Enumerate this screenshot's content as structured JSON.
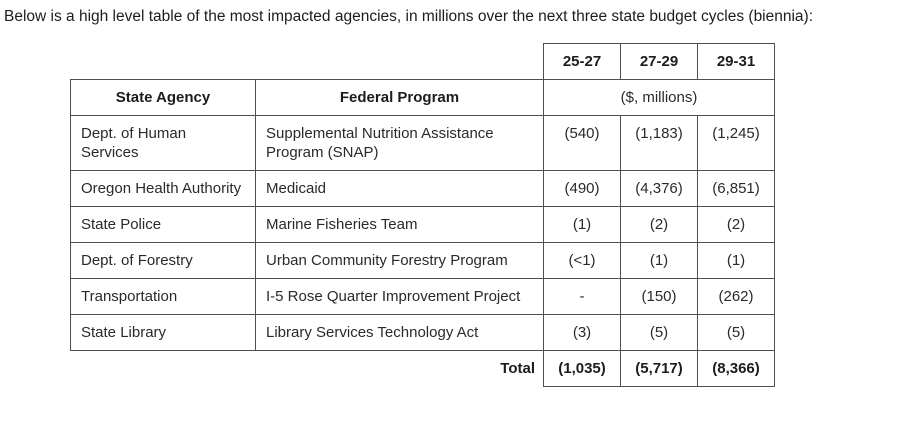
{
  "intro": "Below is a high level table of the most impacted agencies, in millions over the next three state budget cycles (biennia):",
  "table": {
    "period_headers": [
      "25-27",
      "27-29",
      "29-31"
    ],
    "col_headers": [
      "State Agency",
      "Federal Program"
    ],
    "units_header": "($, millions)",
    "rows": [
      {
        "agency": "Dept. of Human Services",
        "program": "Supplemental Nutrition Assistance Program (SNAP)",
        "values": [
          "(540)",
          "(1,183)",
          "(1,245)"
        ]
      },
      {
        "agency": "Oregon Health Authority",
        "program": "Medicaid",
        "values": [
          "(490)",
          "(4,376)",
          "(6,851)"
        ]
      },
      {
        "agency": "State Police",
        "program": "Marine Fisheries Team",
        "values": [
          "(1)",
          "(2)",
          "(2)"
        ]
      },
      {
        "agency": "Dept. of Forestry",
        "program": "Urban Community Forestry Program",
        "values": [
          "(<1)",
          "(1)",
          "(1)"
        ]
      },
      {
        "agency": "Transportation",
        "program": "I-5 Rose Quarter Improvement Project",
        "values": [
          "-",
          "(150)",
          "(262)"
        ]
      },
      {
        "agency": "State Library",
        "program": "Library Services Technology Act",
        "values": [
          "(3)",
          "(5)",
          "(5)"
        ]
      }
    ],
    "total": {
      "label": "Total",
      "values": [
        "(1,035)",
        "(5,717)",
        "(8,366)"
      ]
    }
  }
}
